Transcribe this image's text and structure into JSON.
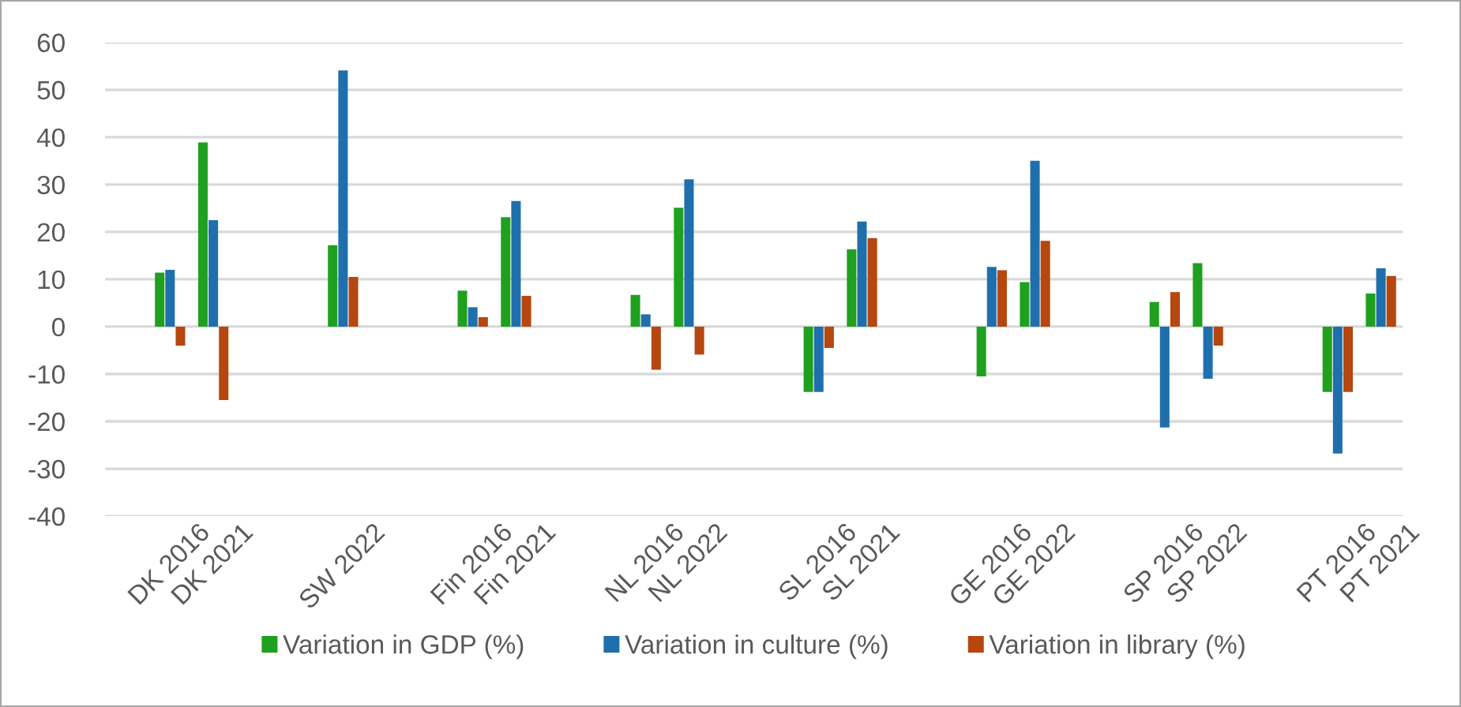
{
  "chart_data": {
    "type": "bar",
    "categories": [
      null,
      "DK 2016",
      "DK 2021",
      null,
      null,
      "SW 2022",
      null,
      null,
      "Fin 2016",
      "Fin 2021",
      null,
      null,
      "NL 2016",
      "NL 2022",
      null,
      null,
      "SL 2016",
      "SL 2021",
      null,
      null,
      "GE 2016",
      "GE 2022",
      null,
      null,
      "SP 2016",
      "SP 2022",
      null,
      null,
      "PT 2016",
      "PT 2021"
    ],
    "series": [
      {
        "name": "Variation in GDP (%)",
        "color": "#1fa01f",
        "values": [
          null,
          11.4,
          38.9,
          null,
          null,
          17.2,
          null,
          null,
          7.6,
          23.1,
          null,
          null,
          6.7,
          25.1,
          null,
          null,
          -13.8,
          16.3,
          null,
          null,
          -10.5,
          9.4,
          null,
          null,
          5.2,
          13.4,
          null,
          null,
          -13.8,
          7.0
        ]
      },
      {
        "name": "Variation in culture (%)",
        "color": "#1f6fad",
        "values": [
          null,
          12.0,
          22.5,
          null,
          null,
          54.1,
          null,
          null,
          4.1,
          26.5,
          null,
          null,
          2.6,
          31.1,
          null,
          null,
          -13.8,
          22.2,
          null,
          null,
          12.6,
          35.0,
          null,
          null,
          -21.3,
          -11.0,
          null,
          null,
          -26.8,
          12.3
        ]
      },
      {
        "name": "Variation in library (%)",
        "color": "#b5470f",
        "values": [
          null,
          -4.0,
          -15.5,
          null,
          null,
          10.5,
          null,
          null,
          2.0,
          6.5,
          null,
          null,
          -9.1,
          -5.9,
          null,
          null,
          -4.5,
          18.7,
          null,
          null,
          11.9,
          18.1,
          null,
          null,
          7.3,
          -4.0,
          null,
          null,
          -13.8,
          10.7
        ]
      }
    ],
    "ylim": [
      -40,
      60
    ],
    "yticks": [
      -40,
      -30,
      -20,
      -10,
      0,
      10,
      20,
      30,
      40,
      50,
      60
    ],
    "grid": "y",
    "legend": "bottom"
  }
}
